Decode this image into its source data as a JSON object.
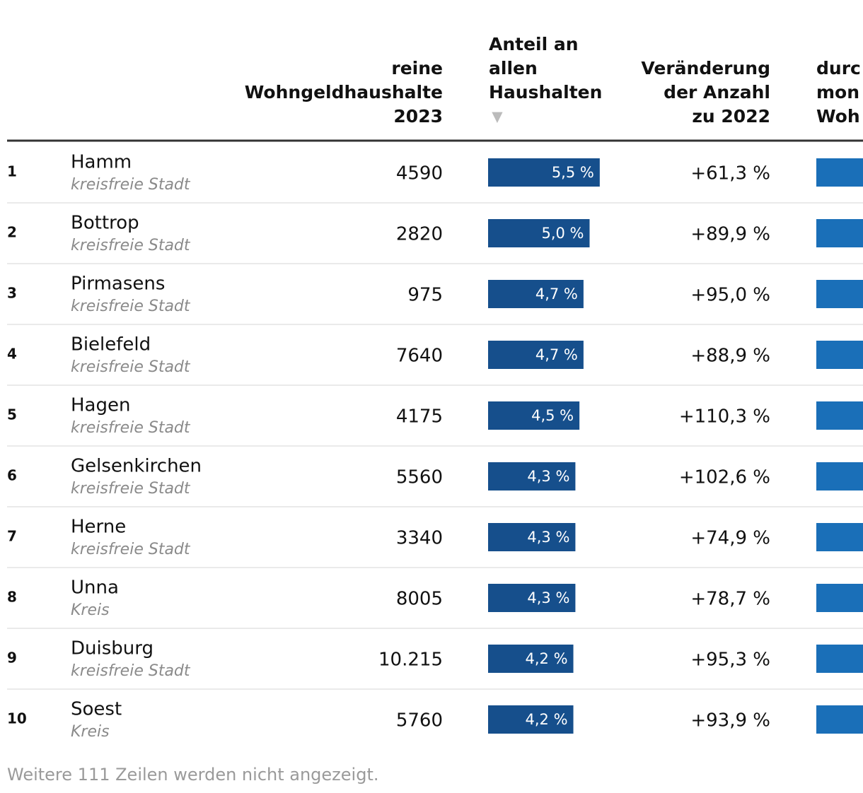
{
  "table": {
    "headers": {
      "households": [
        "reine",
        "Wohngeldhaushalte",
        "2023"
      ],
      "share": [
        "Anteil an",
        "allen",
        "Haushalten"
      ],
      "change": [
        "Veränderung",
        "der Anzahl",
        "zu 2022"
      ],
      "extra": [
        "durc",
        "mon",
        "Woh"
      ]
    },
    "rows": [
      {
        "rank": "1",
        "name": "Hamm",
        "kind": "kreisfreie Stadt",
        "households": "4590",
        "share": {
          "value": 5.5,
          "label": "5,5 %"
        },
        "change": "+61,3 %"
      },
      {
        "rank": "2",
        "name": "Bottrop",
        "kind": "kreisfreie Stadt",
        "households": "2820",
        "share": {
          "value": 5.0,
          "label": "5,0 %"
        },
        "change": "+89,9 %"
      },
      {
        "rank": "3",
        "name": "Pirmasens",
        "kind": "kreisfreie Stadt",
        "households": "975",
        "share": {
          "value": 4.7,
          "label": "4,7 %"
        },
        "change": "+95,0 %"
      },
      {
        "rank": "4",
        "name": "Bielefeld",
        "kind": "kreisfreie Stadt",
        "households": "7640",
        "share": {
          "value": 4.7,
          "label": "4,7 %"
        },
        "change": "+88,9 %"
      },
      {
        "rank": "5",
        "name": "Hagen",
        "kind": "kreisfreie Stadt",
        "households": "4175",
        "share": {
          "value": 4.5,
          "label": "4,5 %"
        },
        "change": "+110,3 %"
      },
      {
        "rank": "6",
        "name": "Gelsenkirchen",
        "kind": "kreisfreie Stadt",
        "households": "5560",
        "share": {
          "value": 4.3,
          "label": "4,3 %"
        },
        "change": "+102,6 %"
      },
      {
        "rank": "7",
        "name": "Herne",
        "kind": "kreisfreie Stadt",
        "households": "3340",
        "share": {
          "value": 4.3,
          "label": "4,3 %"
        },
        "change": "+74,9 %"
      },
      {
        "rank": "8",
        "name": "Unna",
        "kind": "Kreis",
        "households": "8005",
        "share": {
          "value": 4.3,
          "label": "4,3 %"
        },
        "change": "+78,7 %"
      },
      {
        "rank": "9",
        "name": "Duisburg",
        "kind": "kreisfreie Stadt",
        "households": "10.215",
        "share": {
          "value": 4.2,
          "label": "4,2 %"
        },
        "change": "+95,3 %"
      },
      {
        "rank": "10",
        "name": "Soest",
        "kind": "Kreis",
        "households": "5760",
        "share": {
          "value": 4.2,
          "label": "4,2 %"
        },
        "change": "+93,9 %"
      }
    ],
    "footer": "Weitere 111 Zeilen werden nicht angezeigt."
  }
}
